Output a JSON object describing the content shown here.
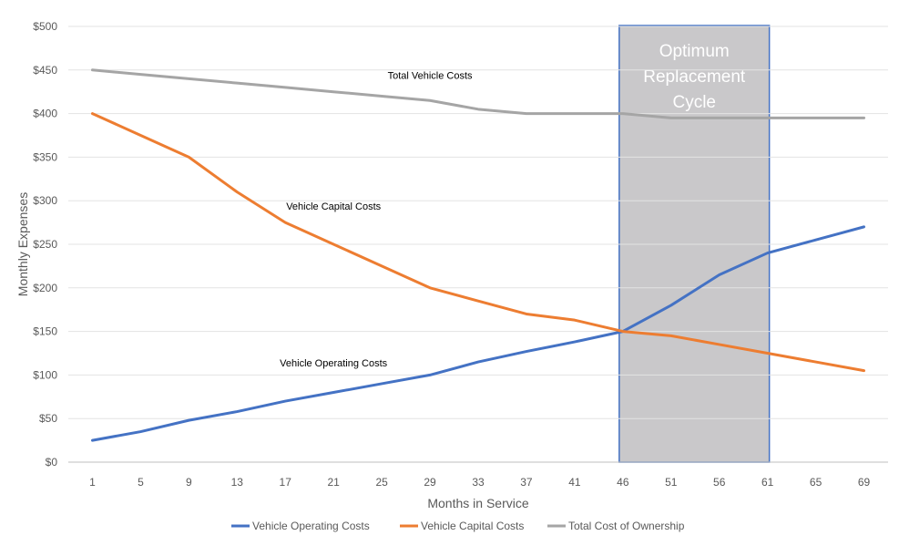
{
  "chart_data": {
    "type": "line",
    "xlabel": "Months in Service",
    "ylabel": "Monthly Expenses",
    "categories": [
      "1",
      "5",
      "9",
      "13",
      "17",
      "21",
      "25",
      "29",
      "33",
      "37",
      "41",
      "46",
      "51",
      "56",
      "61",
      "65",
      "69"
    ],
    "ylim": [
      0,
      500
    ],
    "y_ticks": [
      "$0",
      "$50",
      "$100",
      "$150",
      "$200",
      "$250",
      "$300",
      "$350",
      "$400",
      "$450",
      "$500"
    ],
    "grid": true,
    "legend_position": "bottom",
    "series": [
      {
        "name": "Vehicle Operating Costs",
        "color": "#4472C4",
        "values": [
          25,
          35,
          48,
          58,
          70,
          80,
          90,
          100,
          115,
          127,
          138,
          150,
          180,
          215,
          240,
          255,
          270
        ]
      },
      {
        "name": "Vehicle Capital Costs",
        "color": "#ED7D31",
        "values": [
          400,
          375,
          350,
          310,
          275,
          250,
          225,
          200,
          185,
          170,
          163,
          150,
          145,
          135,
          125,
          115,
          105
        ]
      },
      {
        "name": "Total Cost of Ownership",
        "color": "#A5A5A5",
        "values": [
          450,
          445,
          440,
          435,
          430,
          425,
          420,
          415,
          405,
          400,
          400,
          400,
          395,
          395,
          395,
          395,
          395
        ]
      }
    ],
    "highlight_band": {
      "label_lines": [
        "Optimum",
        "Replacement",
        "Cycle"
      ],
      "from": "46",
      "to": "61",
      "fill": "#C9C8CA",
      "stroke": "#4472C4"
    },
    "annotations": [
      {
        "text": "Total Vehicle Costs",
        "at": "29",
        "y": 440
      },
      {
        "text": "Vehicle Capital Costs",
        "at": "21",
        "y": 290
      },
      {
        "text": "Vehicle Operating Costs",
        "at": "21",
        "y": 110
      }
    ]
  }
}
